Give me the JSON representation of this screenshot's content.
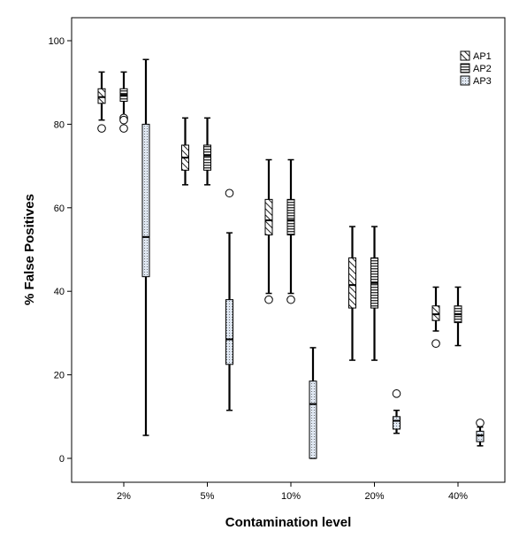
{
  "chart_data": {
    "type": "boxplot",
    "xlabel": "Contamination level",
    "ylabel": "% False Positives",
    "ylim": [
      0,
      100
    ],
    "yticks": [
      0,
      20,
      40,
      60,
      80,
      100
    ],
    "grid": false,
    "legend_position": "top-right",
    "categories": [
      "2%",
      "5%",
      "10%",
      "20%",
      "40%"
    ],
    "series": [
      {
        "name": "AP1",
        "pattern": "diagonal-hatch",
        "boxes": [
          {
            "min": 81,
            "q1": 85,
            "median": 86.5,
            "q3": 88.5,
            "max": 92.5,
            "outliers": [
              79
            ]
          },
          {
            "min": 65.5,
            "q1": 69,
            "median": 72,
            "q3": 75,
            "max": 81.5,
            "outliers": []
          },
          {
            "min": 39.5,
            "q1": 53.5,
            "median": 57,
            "q3": 62,
            "max": 71.5,
            "outliers": [
              38
            ]
          },
          {
            "min": 23.5,
            "q1": 36,
            "median": 41.5,
            "q3": 48,
            "max": 55.5,
            "outliers": []
          },
          {
            "min": 30.5,
            "q1": 33,
            "median": 34.5,
            "q3": 36.5,
            "max": 41,
            "outliers": [
              27.5
            ]
          }
        ]
      },
      {
        "name": "AP2",
        "pattern": "horizontal-lines",
        "boxes": [
          {
            "min": 82,
            "q1": 85.5,
            "median": 87,
            "q3": 88.5,
            "max": 92.5,
            "outliers": [
              81.5,
              81,
              79
            ]
          },
          {
            "min": 65.5,
            "q1": 69,
            "median": 72.5,
            "q3": 75,
            "max": 81.5,
            "outliers": []
          },
          {
            "min": 39.5,
            "q1": 53.5,
            "median": 57,
            "q3": 62,
            "max": 71.5,
            "outliers": [
              38
            ]
          },
          {
            "min": 23.5,
            "q1": 36,
            "median": 42,
            "q3": 48,
            "max": 55.5,
            "outliers": []
          },
          {
            "min": 27,
            "q1": 32.5,
            "median": 34.5,
            "q3": 36.5,
            "max": 41,
            "outliers": []
          }
        ]
      },
      {
        "name": "AP3",
        "pattern": "dotted",
        "boxes": [
          {
            "min": 5.5,
            "q1": 43.5,
            "median": 53,
            "q3": 80,
            "max": 95.5,
            "outliers": []
          },
          {
            "min": 11.5,
            "q1": 22.5,
            "median": 28.5,
            "q3": 38,
            "max": 54,
            "outliers": [
              63.5
            ]
          },
          {
            "min": 0,
            "q1": 0,
            "median": 13,
            "q3": 18.5,
            "max": 26.5,
            "outliers": []
          },
          {
            "min": 6,
            "q1": 7,
            "median": 9,
            "q3": 10,
            "max": 11.5,
            "outliers": [
              15.5
            ]
          },
          {
            "min": 3,
            "q1": 4,
            "median": 5.5,
            "q3": 6.5,
            "max": 7.5,
            "outliers": [
              8.5
            ]
          }
        ]
      }
    ]
  }
}
